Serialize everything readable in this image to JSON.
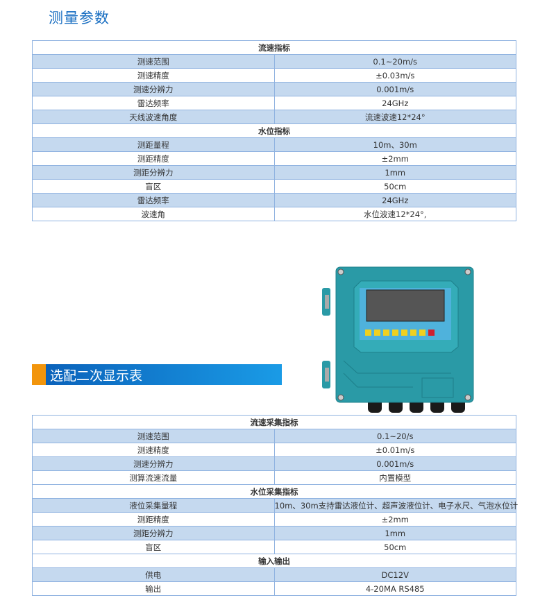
{
  "section1": {
    "title": "测量参数",
    "rows": [
      {
        "header": "流速指标"
      },
      {
        "label": "测速范围",
        "value": "0.1~20m/s"
      },
      {
        "label": "测速精度",
        "value": "±0.03m/s"
      },
      {
        "label": "测速分辨力",
        "value": "0.001m/s"
      },
      {
        "label": "雷达频率",
        "value": "24GHz"
      },
      {
        "label": "天线波速角度",
        "value": "流速波速12*24°"
      },
      {
        "header": "水位指标"
      },
      {
        "label": "测距量程",
        "value": "10m、30m"
      },
      {
        "label": "测距精度",
        "value": "±2mm"
      },
      {
        "label": "测距分辨力",
        "value": "1mm"
      },
      {
        "label": "盲区",
        "value": "50cm"
      },
      {
        "label": "雷达频率",
        "value": "24GHz"
      },
      {
        "label": "波速角",
        "value": "水位波速12*24°,"
      }
    ]
  },
  "section2": {
    "title": "选配二次显示表",
    "accent_color": "#f2950c",
    "banner_color": "#0a5fb8",
    "rows": [
      {
        "header": "流速采集指标"
      },
      {
        "label": "测速范围",
        "value": "0.1~20/s"
      },
      {
        "label": "测速精度",
        "value": "±0.01m/s"
      },
      {
        "label": "测速分辨力",
        "value": "0.001m/s"
      },
      {
        "label": "测算流速流量",
        "value": "内置模型"
      },
      {
        "header": "水位采集指标"
      },
      {
        "label": "液位采集量程",
        "value": "10m、30m支持雷达液位计、超声波液位计、电子水尺、气泡水位计"
      },
      {
        "label": "测距精度",
        "value": "±2mm"
      },
      {
        "label": "测距分辨力",
        "value": "1mm"
      },
      {
        "label": "盲区",
        "value": "50cm"
      },
      {
        "header": "输入输出"
      },
      {
        "label": "供电",
        "value": "DC12V"
      },
      {
        "label": "输出",
        "value": "4-20MA  RS485"
      }
    ]
  },
  "colors": {
    "title": "#1a6fc2",
    "row_blue": "#c5d9ef",
    "border": "#8fb2e0",
    "device_body": "#2a9aa6"
  }
}
